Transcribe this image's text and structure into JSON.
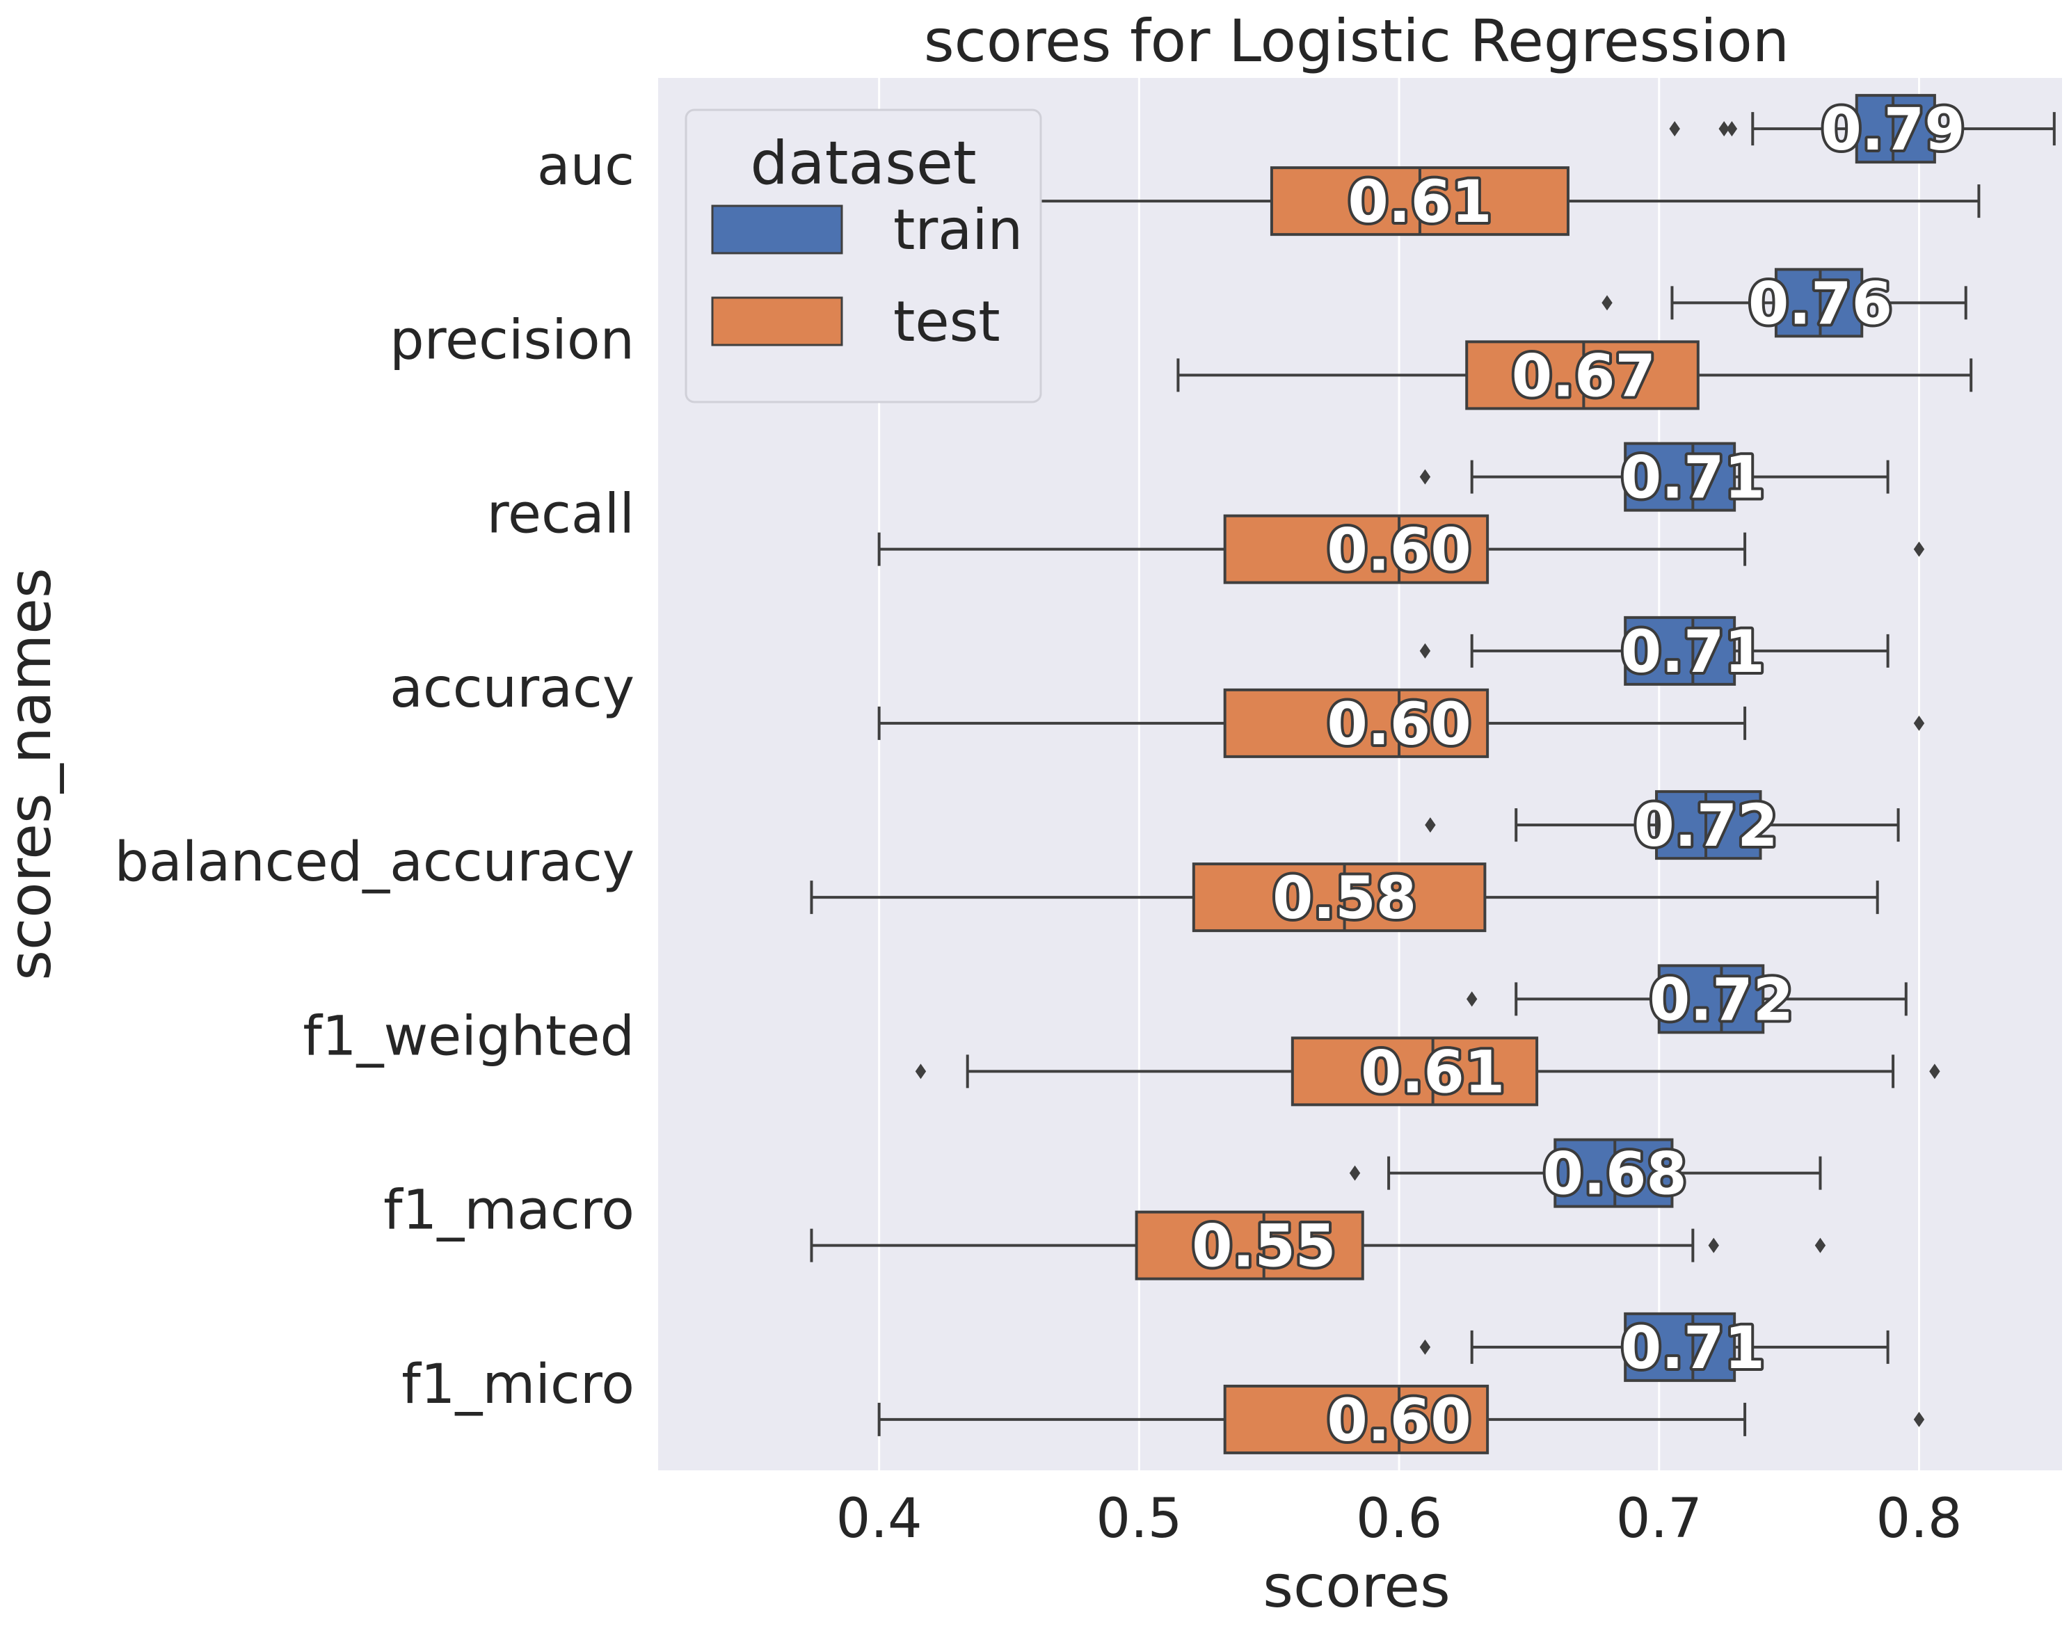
{
  "chart_data": {
    "type": "box",
    "orientation": "horizontal",
    "title": "scores for Logistic Regression",
    "xlabel": "scores",
    "ylabel": "scores_names",
    "xlim": [
      0.315,
      0.855
    ],
    "xticks": [
      0.4,
      0.5,
      0.6,
      0.7,
      0.8
    ],
    "xtick_labels": [
      "0.4",
      "0.5",
      "0.6",
      "0.7",
      "0.8"
    ],
    "grid": true,
    "legend": {
      "title": "dataset",
      "placement": "upper-left",
      "entries": [
        {
          "label": "train",
          "color": "#4c72b0"
        },
        {
          "label": "test",
          "color": "#dd8452"
        }
      ]
    },
    "categories": [
      "auc",
      "precision",
      "recall",
      "accuracy",
      "balanced_accuracy",
      "f1_weighted",
      "f1_macro",
      "f1_micro"
    ],
    "series": [
      {
        "name": "train",
        "color": "#4c72b0",
        "boxes": [
          {
            "q1": 0.776,
            "median": 0.79,
            "q3": 0.806,
            "whisker_low": 0.736,
            "whisker_high": 0.852,
            "outliers": [
              0.706,
              0.725,
              0.728
            ],
            "label": "0.79"
          },
          {
            "q1": 0.745,
            "median": 0.762,
            "q3": 0.778,
            "whisker_low": 0.705,
            "whisker_high": 0.818,
            "outliers": [
              0.68
            ],
            "label": "0.76"
          },
          {
            "q1": 0.687,
            "median": 0.713,
            "q3": 0.729,
            "whisker_low": 0.628,
            "whisker_high": 0.788,
            "outliers": [
              0.61
            ],
            "label": "0.71"
          },
          {
            "q1": 0.687,
            "median": 0.713,
            "q3": 0.729,
            "whisker_low": 0.628,
            "whisker_high": 0.788,
            "outliers": [
              0.61
            ],
            "label": "0.71"
          },
          {
            "q1": 0.699,
            "median": 0.718,
            "q3": 0.739,
            "whisker_low": 0.645,
            "whisker_high": 0.792,
            "outliers": [
              0.612
            ],
            "label": "0.72"
          },
          {
            "q1": 0.7,
            "median": 0.724,
            "q3": 0.74,
            "whisker_low": 0.645,
            "whisker_high": 0.795,
            "outliers": [
              0.628
            ],
            "label": "0.72"
          },
          {
            "q1": 0.66,
            "median": 0.683,
            "q3": 0.705,
            "whisker_low": 0.596,
            "whisker_high": 0.762,
            "outliers": [
              0.583
            ],
            "label": "0.68"
          },
          {
            "q1": 0.687,
            "median": 0.713,
            "q3": 0.729,
            "whisker_low": 0.628,
            "whisker_high": 0.788,
            "outliers": [
              0.61
            ],
            "label": "0.71"
          }
        ]
      },
      {
        "name": "test",
        "color": "#dd8452",
        "boxes": [
          {
            "q1": 0.551,
            "median": 0.608,
            "q3": 0.665,
            "whisker_low": 0.38,
            "whisker_high": 0.823,
            "outliers": [
              0.34,
              0.352,
              0.357
            ],
            "label": "0.61"
          },
          {
            "q1": 0.626,
            "median": 0.671,
            "q3": 0.715,
            "whisker_low": 0.515,
            "whisker_high": 0.82,
            "outliers": [],
            "label": "0.67"
          },
          {
            "q1": 0.533,
            "median": 0.6,
            "q3": 0.634,
            "whisker_low": 0.4,
            "whisker_high": 0.733,
            "outliers": [
              0.8
            ],
            "label": "0.60"
          },
          {
            "q1": 0.533,
            "median": 0.6,
            "q3": 0.634,
            "whisker_low": 0.4,
            "whisker_high": 0.733,
            "outliers": [
              0.8
            ],
            "label": "0.60"
          },
          {
            "q1": 0.521,
            "median": 0.579,
            "q3": 0.633,
            "whisker_low": 0.374,
            "whisker_high": 0.784,
            "outliers": [],
            "label": "0.58"
          },
          {
            "q1": 0.559,
            "median": 0.613,
            "q3": 0.653,
            "whisker_low": 0.434,
            "whisker_high": 0.79,
            "outliers": [
              0.416,
              0.806
            ],
            "label": "0.61"
          },
          {
            "q1": 0.499,
            "median": 0.548,
            "q3": 0.586,
            "whisker_low": 0.374,
            "whisker_high": 0.713,
            "outliers": [
              0.721,
              0.762
            ],
            "label": "0.55"
          },
          {
            "q1": 0.533,
            "median": 0.6,
            "q3": 0.634,
            "whisker_low": 0.4,
            "whisker_high": 0.733,
            "outliers": [
              0.8
            ],
            "label": "0.60"
          }
        ]
      }
    ]
  }
}
